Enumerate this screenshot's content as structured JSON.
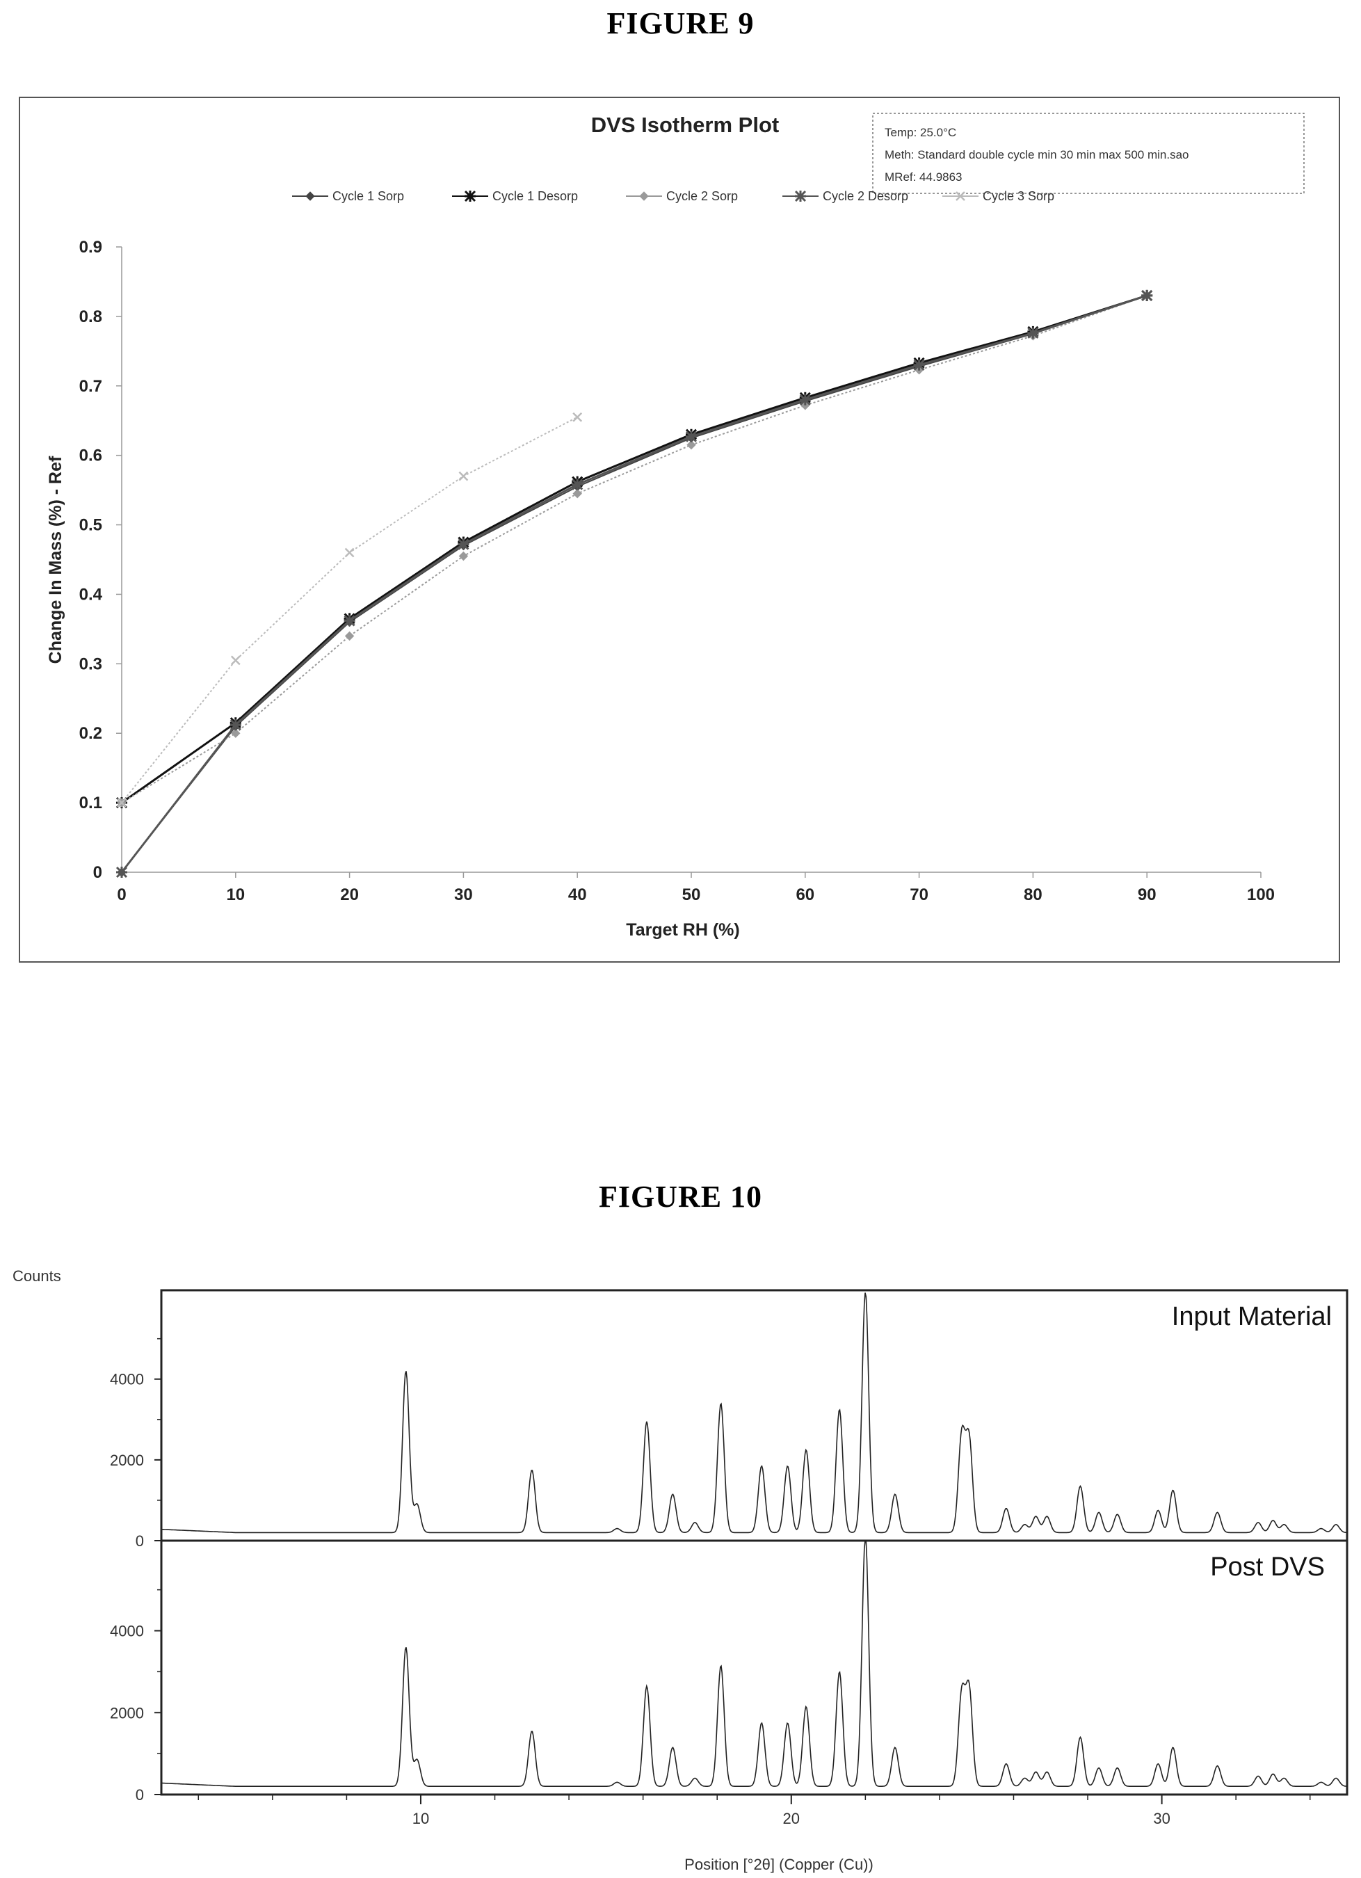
{
  "figure9": {
    "heading": "FIGURE 9",
    "info": {
      "temp": "Temp: 25.0°C",
      "meth": "Meth: Standard double cycle min 30 min max 500 min.sao",
      "mref": "MRef: 44.9863"
    }
  },
  "figure10": {
    "heading": "FIGURE 10",
    "counts_label": "Counts"
  },
  "chart_data": [
    {
      "type": "line",
      "title": "DVS Isotherm Plot",
      "xlabel": "Target RH (%)",
      "ylabel": "Change In Mass (%) - Ref",
      "xlim": [
        0,
        100
      ],
      "ylim": [
        0,
        0.9
      ],
      "xticks": [
        0,
        10,
        20,
        30,
        40,
        50,
        60,
        70,
        80,
        90,
        100
      ],
      "yticks": [
        0,
        0.1,
        0.2,
        0.3,
        0.4,
        0.5,
        0.6,
        0.7,
        0.8,
        0.9
      ],
      "grid": false,
      "legend_position": "top",
      "series": [
        {
          "name": "Cycle 1 Sorp",
          "color": "#444444",
          "marker": "diamond",
          "x": [
            0,
            10,
            20,
            30,
            40,
            50,
            60,
            70,
            80,
            90
          ],
          "y": [
            0.0,
            0.21,
            0.36,
            0.47,
            0.555,
            0.625,
            0.678,
            0.728,
            0.775,
            0.83
          ]
        },
        {
          "name": "Cycle 1 Desorp",
          "color": "#111111",
          "marker": "star",
          "x": [
            90,
            80,
            70,
            60,
            50,
            40,
            30,
            20,
            10,
            0
          ],
          "y": [
            0.83,
            0.778,
            0.733,
            0.683,
            0.63,
            0.562,
            0.475,
            0.365,
            0.215,
            0.1
          ]
        },
        {
          "name": "Cycle 2 Sorp",
          "color": "#9a9a9a",
          "marker": "diamond",
          "x": [
            0,
            10,
            20,
            30,
            40,
            50,
            60,
            70,
            80,
            90
          ],
          "y": [
            0.1,
            0.2,
            0.34,
            0.455,
            0.545,
            0.615,
            0.672,
            0.723,
            0.772,
            0.83
          ]
        },
        {
          "name": "Cycle 2 Desorp",
          "color": "#555555",
          "marker": "star",
          "x": [
            90,
            80,
            70,
            60,
            50,
            40,
            30,
            20,
            10,
            0
          ],
          "y": [
            0.83,
            0.776,
            0.73,
            0.68,
            0.627,
            0.558,
            0.472,
            0.362,
            0.212,
            0.0
          ]
        },
        {
          "name": "Cycle 3 Sorp",
          "color": "#bbbbbb",
          "marker": "x",
          "x": [
            0,
            10,
            20,
            30,
            40
          ],
          "y": [
            0.1,
            0.305,
            0.46,
            0.57,
            0.655
          ]
        }
      ]
    },
    {
      "type": "line",
      "title": "",
      "xlabel": "Position [°2θ] (Copper (Cu))",
      "ylabel": "Counts",
      "xlim": [
        3,
        35
      ],
      "xticks": [
        10,
        20,
        30
      ],
      "yticks": [
        0,
        2000,
        4000
      ],
      "panels": [
        {
          "name": "Input Material",
          "ylim": [
            0,
            6200
          ],
          "baseline": 200,
          "peaks": [
            [
              9.6,
              4000
            ],
            [
              9.9,
              700
            ],
            [
              13.0,
              1550
            ],
            [
              15.3,
              100
            ],
            [
              16.1,
              2750
            ],
            [
              16.8,
              950
            ],
            [
              17.4,
              250
            ],
            [
              18.1,
              3200
            ],
            [
              19.2,
              1650
            ],
            [
              19.9,
              1650
            ],
            [
              20.4,
              2050
            ],
            [
              21.3,
              3050
            ],
            [
              22.0,
              5950
            ],
            [
              22.8,
              950
            ],
            [
              24.6,
              2400
            ],
            [
              24.8,
              2300
            ],
            [
              25.8,
              600
            ],
            [
              26.3,
              200
            ],
            [
              26.6,
              400
            ],
            [
              26.9,
              400
            ],
            [
              27.8,
              1150
            ],
            [
              28.3,
              500
            ],
            [
              28.8,
              450
            ],
            [
              29.9,
              550
            ],
            [
              30.3,
              1050
            ],
            [
              31.5,
              500
            ],
            [
              32.6,
              250
            ],
            [
              33.0,
              300
            ],
            [
              33.3,
              200
            ],
            [
              34.3,
              100
            ],
            [
              34.7,
              200
            ]
          ]
        },
        {
          "name": "Post DVS",
          "ylim": [
            0,
            6200
          ],
          "baseline": 200,
          "peaks": [
            [
              9.6,
              3400
            ],
            [
              9.9,
              650
            ],
            [
              13.0,
              1350
            ],
            [
              15.3,
              100
            ],
            [
              16.1,
              2450
            ],
            [
              16.8,
              950
            ],
            [
              17.4,
              200
            ],
            [
              18.1,
              2950
            ],
            [
              19.2,
              1550
            ],
            [
              19.9,
              1550
            ],
            [
              20.4,
              1950
            ],
            [
              21.3,
              2800
            ],
            [
              22.0,
              6100
            ],
            [
              22.8,
              950
            ],
            [
              24.6,
              2250
            ],
            [
              24.8,
              2350
            ],
            [
              25.8,
              550
            ],
            [
              26.3,
              200
            ],
            [
              26.6,
              350
            ],
            [
              26.9,
              350
            ],
            [
              27.8,
              1200
            ],
            [
              28.3,
              450
            ],
            [
              28.8,
              450
            ],
            [
              29.9,
              550
            ],
            [
              30.3,
              950
            ],
            [
              31.5,
              500
            ],
            [
              32.6,
              250
            ],
            [
              33.0,
              300
            ],
            [
              33.3,
              200
            ],
            [
              34.3,
              100
            ],
            [
              34.7,
              200
            ]
          ]
        }
      ]
    }
  ]
}
